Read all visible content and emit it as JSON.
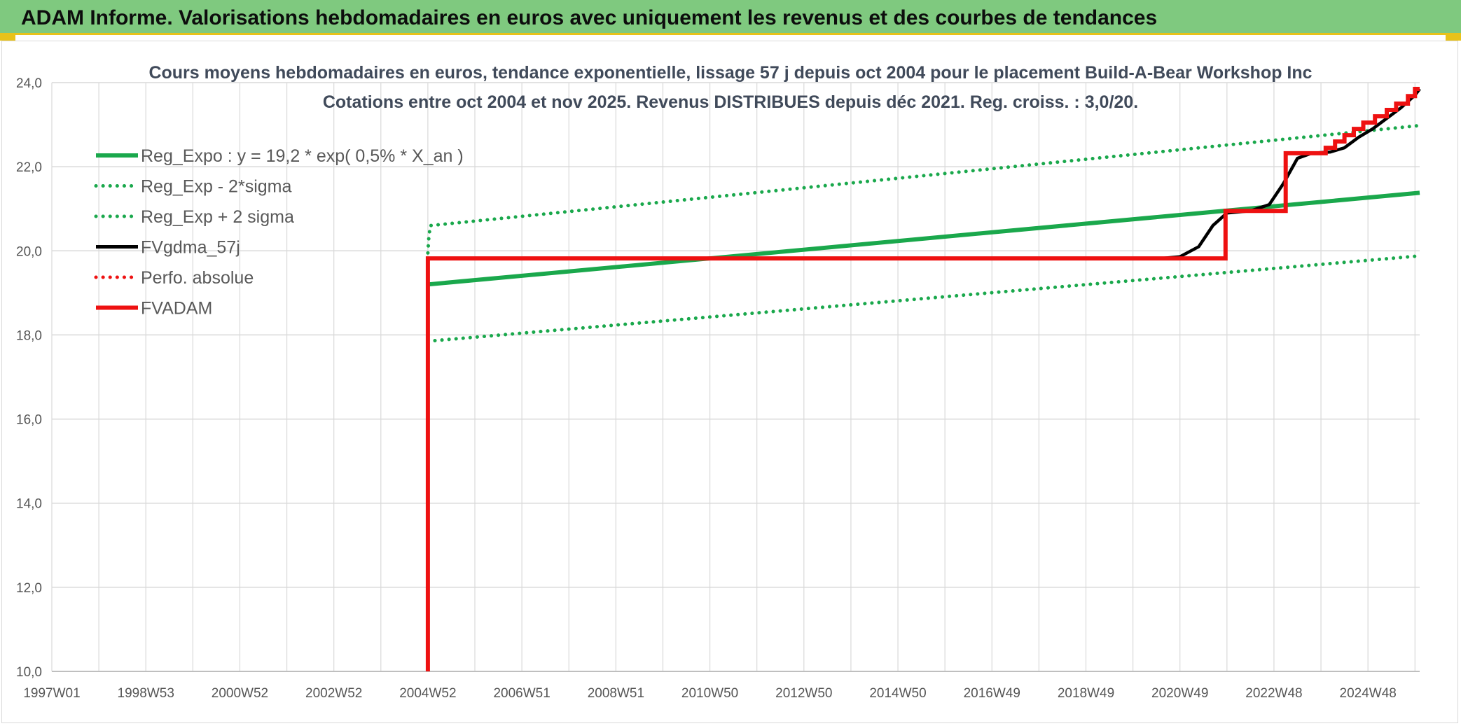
{
  "header": {
    "title": "ADAM Informe. Valorisations hebdomadaires en euros avec uniquement les revenus et des courbes de tendances"
  },
  "colors": {
    "header_bg": "#7fc97f",
    "accent_yellow": "#e8c21a",
    "green": "#1aa84c",
    "red": "#ee1111",
    "black": "#000000",
    "grid": "#d9d9d9"
  },
  "chart_data": {
    "type": "line",
    "title": "Cours moyens hebdomadaires en euros, tendance exponentielle, lissage 57 j depuis oct 2004 pour le placement Build-A-Bear Workshop Inc",
    "subtitle": "Cotations entre oct 2004 et nov 2025. Revenus DISTRIBUES depuis déc 2021. Reg. croiss. : 3,0/20.",
    "xlabel": "",
    "ylabel": "",
    "x_range": [
      1997.0,
      2026.1
    ],
    "x_ticks": [
      {
        "label": "1997W01",
        "value": 1997.0
      },
      {
        "label": "1998W53",
        "value": 1999.0
      },
      {
        "label": "2000W52",
        "value": 2001.0
      },
      {
        "label": "2002W52",
        "value": 2003.0
      },
      {
        "label": "2004W52",
        "value": 2005.0
      },
      {
        "label": "2006W51",
        "value": 2007.0
      },
      {
        "label": "2008W51",
        "value": 2009.0
      },
      {
        "label": "2010W50",
        "value": 2011.0
      },
      {
        "label": "2012W50",
        "value": 2013.0
      },
      {
        "label": "2014W50",
        "value": 2015.0
      },
      {
        "label": "2016W49",
        "value": 2017.0
      },
      {
        "label": "2018W49",
        "value": 2019.0
      },
      {
        "label": "2020W49",
        "value": 2021.0
      },
      {
        "label": "2022W48",
        "value": 2023.0
      },
      {
        "label": "2024W48",
        "value": 2025.0
      }
    ],
    "ylim": [
      10.0,
      24.0
    ],
    "y_ticks": [
      {
        "label": "24,0",
        "value": 24.0
      },
      {
        "label": "22,0",
        "value": 22.0
      },
      {
        "label": "20,0",
        "value": 20.0
      },
      {
        "label": "18,0",
        "value": 18.0
      },
      {
        "label": "16,0",
        "value": 16.0
      },
      {
        "label": "14,0",
        "value": 14.0
      },
      {
        "label": "12,0",
        "value": 12.0
      },
      {
        "label": "10,0",
        "value": 10.0
      }
    ],
    "grid": true,
    "legend_position": "top-left",
    "series": [
      {
        "name": "Reg_Expo : y = 19,2 * exp( 0,5% *  X_an )",
        "style": "solid-thick",
        "color": "#1aa84c",
        "points": [
          [
            2005.0,
            19.2
          ],
          [
            2026.1,
            21.38
          ]
        ]
      },
      {
        "name": "Reg_Exp - 2*sigma",
        "style": "dotted",
        "color": "#1aa84c",
        "points": [
          [
            2005.0,
            17.85
          ],
          [
            2026.1,
            19.88
          ]
        ]
      },
      {
        "name": "Reg_Exp + 2 sigma",
        "style": "dotted",
        "color": "#1aa84c",
        "points": [
          [
            2005.0,
            19.95
          ],
          [
            2005.02,
            20.3
          ],
          [
            2005.05,
            20.6
          ],
          [
            2026.1,
            22.98
          ]
        ]
      },
      {
        "name": "FVgdma_57j",
        "style": "solid",
        "color": "#000000",
        "points": [
          [
            2005.0,
            19.82
          ],
          [
            2020.6,
            19.82
          ],
          [
            2021.0,
            19.86
          ],
          [
            2021.4,
            20.1
          ],
          [
            2021.7,
            20.6
          ],
          [
            2022.0,
            20.9
          ],
          [
            2022.5,
            20.95
          ],
          [
            2022.9,
            21.1
          ],
          [
            2023.2,
            21.6
          ],
          [
            2023.5,
            22.2
          ],
          [
            2023.8,
            22.32
          ],
          [
            2024.2,
            22.35
          ],
          [
            2024.5,
            22.45
          ],
          [
            2024.8,
            22.7
          ],
          [
            2025.1,
            22.9
          ],
          [
            2025.4,
            23.15
          ],
          [
            2025.7,
            23.4
          ],
          [
            2026.0,
            23.7
          ],
          [
            2026.1,
            23.85
          ]
        ]
      },
      {
        "name": "Perfo. absolue",
        "style": "dotted",
        "color": "#ee1111",
        "points": []
      },
      {
        "name": "FVADAM",
        "style": "solid-thick",
        "color": "#ee1111",
        "points": [
          [
            2005.0,
            10.0
          ],
          [
            2005.0,
            19.82
          ],
          [
            2021.97,
            19.82
          ],
          [
            2021.97,
            20.95
          ],
          [
            2023.25,
            20.95
          ],
          [
            2023.25,
            22.32
          ],
          [
            2024.1,
            22.32
          ],
          [
            2024.1,
            22.45
          ],
          [
            2024.3,
            22.45
          ],
          [
            2024.3,
            22.6
          ],
          [
            2024.5,
            22.6
          ],
          [
            2024.5,
            22.75
          ],
          [
            2024.7,
            22.75
          ],
          [
            2024.7,
            22.9
          ],
          [
            2024.9,
            22.9
          ],
          [
            2024.9,
            23.05
          ],
          [
            2025.15,
            23.05
          ],
          [
            2025.15,
            23.2
          ],
          [
            2025.4,
            23.2
          ],
          [
            2025.4,
            23.35
          ],
          [
            2025.6,
            23.35
          ],
          [
            2025.6,
            23.5
          ],
          [
            2025.85,
            23.5
          ],
          [
            2025.85,
            23.68
          ],
          [
            2026.0,
            23.68
          ],
          [
            2026.0,
            23.85
          ],
          [
            2026.1,
            23.85
          ]
        ]
      }
    ]
  }
}
